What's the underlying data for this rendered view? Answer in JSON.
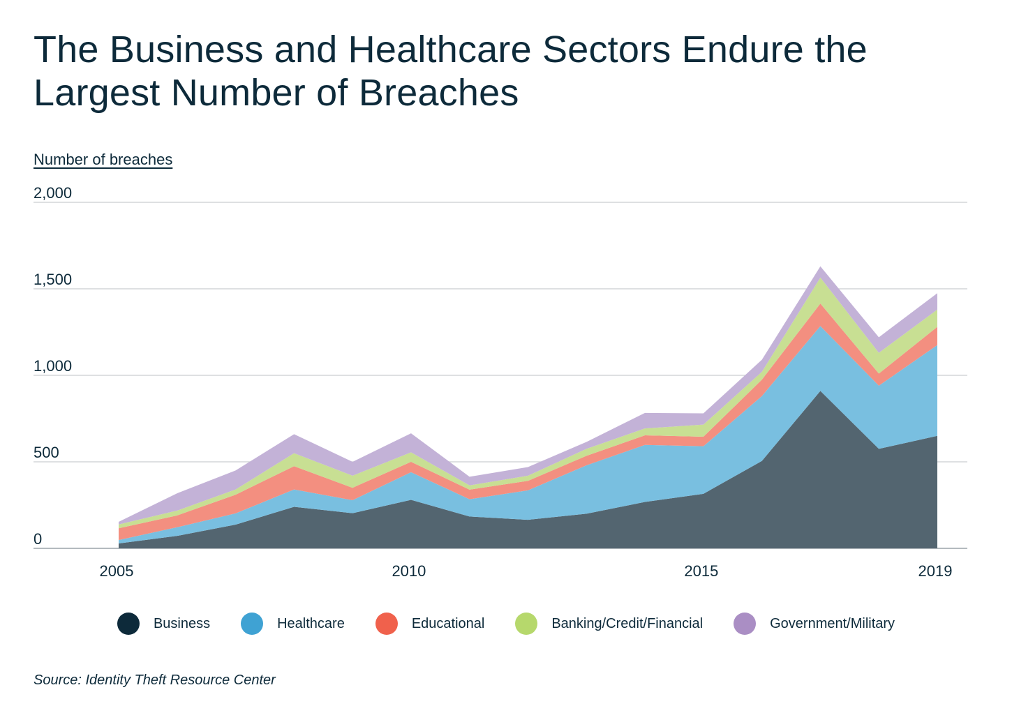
{
  "title": "The Business and Healthcare Sectors Endure the Largest Number of Breaches",
  "source": "Source: Identity Theft Resource Center",
  "chart_data": {
    "type": "area",
    "stacked": true,
    "title": "The Business and Healthcare Sectors Endure the Largest Number of Breaches",
    "ylabel": "Number of breaches",
    "xlabel": "",
    "x": [
      2005,
      2006,
      2007,
      2008,
      2009,
      2010,
      2011,
      2012,
      2013,
      2014,
      2015,
      2016,
      2017,
      2018,
      2019
    ],
    "x_ticks": [
      "2005",
      "2010",
      "2015",
      "2019"
    ],
    "y_ticks": [
      "0",
      "500",
      "1,000",
      "1,500",
      "2,000"
    ],
    "ylim": [
      0,
      2000
    ],
    "grid": true,
    "legend_position": "bottom",
    "series": [
      {
        "name": "Business",
        "color": "#536570",
        "values": [
          28,
          72,
          137,
          240,
          203,
          280,
          184,
          165,
          200,
          268,
          315,
          505,
          910,
          575,
          650
        ]
      },
      {
        "name": "Healthcare",
        "color": "#79bfe0",
        "values": [
          20,
          50,
          65,
          100,
          75,
          160,
          100,
          170,
          280,
          330,
          275,
          375,
          375,
          365,
          525
        ]
      },
      {
        "name": "Educational",
        "color": "#f38f80",
        "values": [
          68,
          68,
          108,
          135,
          72,
          60,
          55,
          55,
          55,
          55,
          55,
          95,
          130,
          70,
          105
        ]
      },
      {
        "name": "Banking/Credit/Financial",
        "color": "#c8df93",
        "values": [
          22,
          28,
          30,
          75,
          70,
          55,
          25,
          30,
          40,
          40,
          70,
          45,
          150,
          120,
          100
        ]
      },
      {
        "name": "Government/Military",
        "color": "#c3b2d7",
        "values": [
          15,
          100,
          110,
          110,
          80,
          110,
          50,
          50,
          40,
          90,
          65,
          70,
          65,
          90,
          95
        ]
      }
    ]
  },
  "legend": [
    {
      "label": "Business",
      "color": "#0d2a3a"
    },
    {
      "label": "Healthcare",
      "color": "#3fa2d3"
    },
    {
      "label": "Educational",
      "color": "#f0614c"
    },
    {
      "label": "Banking/Credit/Financial",
      "color": "#b6d86c"
    },
    {
      "label": "Government/Military",
      "color": "#aa8ec4"
    }
  ]
}
